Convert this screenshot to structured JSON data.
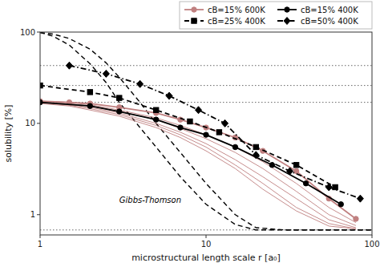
{
  "chart_data": {
    "type": "line",
    "title": "",
    "xlabel": "microstructural length scale  r  [a₀]",
    "ylabel": "solubility [%]",
    "log": true,
    "grid": false,
    "legend": "upper right",
    "xlim": [
      1,
      100
    ],
    "ylim": [
      0.6,
      100
    ],
    "xticks": [
      1,
      10,
      100
    ],
    "yticks": [
      1,
      10,
      100
    ],
    "hlines": [
      17.0,
      26.0,
      43.0,
      0.68
    ],
    "annotations": [
      {
        "text": "Gibbs-Thomson",
        "x": 3.0,
        "y": 1.35
      }
    ],
    "series": [
      {
        "color": "#000000",
        "line_style": "dashed",
        "x": [
          1.0,
          1.2,
          1.5,
          2.0,
          2.5,
          3.0,
          4.0,
          5.0,
          7.0,
          10.0,
          15.0,
          20.0,
          30.0,
          50.0,
          80.0,
          100.0
        ],
        "values": [
          99.0,
          90.0,
          72.0,
          45.0,
          28.0,
          17.0,
          9.0,
          5.5,
          2.6,
          1.3,
          0.78,
          0.68,
          0.68,
          0.68,
          0.68,
          0.68
        ]
      },
      {
        "color": "#000000",
        "line_style": "dashed",
        "x": [
          1.0,
          1.2,
          1.5,
          2.0,
          2.5,
          3.0,
          4.0,
          5.0,
          7.0,
          10.0,
          15.0,
          20.0,
          30.0,
          50.0,
          80.0,
          100.0
        ],
        "values": [
          99.0,
          95.0,
          85.0,
          65.0,
          46.0,
          32.0,
          17.0,
          10.0,
          4.8,
          2.2,
          1.0,
          0.72,
          0.68,
          0.68,
          0.68,
          0.68
        ]
      },
      {
        "color": "#c08080",
        "line_style": "solid",
        "x": [
          1.0,
          1.5,
          2.0,
          3.0,
          5.0,
          7.0,
          10.0,
          15.0,
          22.0,
          35.0,
          55.0,
          80.0
        ],
        "values": [
          17.5,
          17.0,
          16.0,
          14.0,
          11.5,
          9.5,
          7.5,
          5.5,
          3.8,
          2.2,
          1.2,
          0.82
        ]
      },
      {
        "color": "#c08080",
        "line_style": "solid",
        "x": [
          1.0,
          1.5,
          2.0,
          3.0,
          5.0,
          7.0,
          10.0,
          15.0,
          22.0,
          35.0,
          55.0,
          80.0
        ],
        "values": [
          17.2,
          16.5,
          15.5,
          13.5,
          11.0,
          8.8,
          6.8,
          4.8,
          3.2,
          1.8,
          1.0,
          0.76
        ]
      },
      {
        "color": "#c08080",
        "line_style": "solid",
        "x": [
          1.0,
          1.5,
          2.0,
          3.0,
          5.0,
          7.0,
          10.0,
          15.0,
          22.0,
          35.0,
          55.0,
          80.0
        ],
        "values": [
          17.0,
          16.0,
          15.0,
          13.0,
          10.0,
          8.0,
          6.0,
          4.0,
          2.6,
          1.5,
          0.88,
          0.72
        ]
      },
      {
        "color": "#c08080",
        "line_style": "solid",
        "x": [
          1.0,
          1.5,
          2.0,
          3.0,
          5.0,
          7.0,
          10.0,
          15.0,
          22.0,
          35.0,
          55.0,
          80.0
        ],
        "values": [
          16.8,
          15.8,
          14.5,
          12.5,
          9.5,
          7.5,
          5.5,
          3.5,
          2.2,
          1.2,
          0.8,
          0.7
        ]
      },
      {
        "color": "#c08080",
        "line_style": "solid",
        "x": [
          1.0,
          1.5,
          2.0,
          3.0,
          5.0,
          7.0,
          10.0,
          15.0,
          22.0,
          35.0,
          55.0,
          80.0
        ],
        "values": [
          16.5,
          15.5,
          14.0,
          12.0,
          9.0,
          7.0,
          5.0,
          3.2,
          1.9,
          1.1,
          0.75,
          0.7
        ]
      },
      {
        "name": "cB=15% 600K",
        "color": "#c08080",
        "line_style": "solid",
        "marker": "circle",
        "x": [
          1.0,
          1.5,
          2.0,
          3.0,
          5.0,
          7.0,
          10.0,
          15.0,
          22.0,
          35.0,
          55.0,
          80.0
        ],
        "values": [
          17.5,
          17.0,
          16.5,
          15.0,
          13.0,
          11.0,
          9.0,
          7.0,
          5.0,
          3.0,
          1.5,
          0.9
        ]
      },
      {
        "name": "cB=15% 400K",
        "color": "#000000",
        "line_style": "solid",
        "marker": "circle",
        "x": [
          1.0,
          2.0,
          3.0,
          5.0,
          7.0,
          10.0,
          15.0,
          25.0,
          40.0,
          65.0
        ],
        "values": [
          17.0,
          15.5,
          13.5,
          11.0,
          9.0,
          7.5,
          5.5,
          3.5,
          2.2,
          1.3
        ]
      },
      {
        "name": "cB=25% 400K",
        "color": "#000000",
        "line_style": "dashed",
        "marker": "square",
        "x": [
          1.0,
          2.0,
          3.0,
          5.0,
          8.0,
          12.0,
          20.0,
          35.0,
          60.0
        ],
        "values": [
          26.0,
          22.0,
          19.0,
          14.0,
          10.5,
          8.0,
          5.5,
          3.5,
          2.0
        ]
      },
      {
        "name": "cB=50% 400K",
        "color": "#000000",
        "line_style": "dashdot",
        "marker": "diamond",
        "x": [
          1.5,
          2.5,
          4.0,
          6.0,
          9.0,
          13.0,
          20.0,
          32.0,
          55.0,
          85.0
        ],
        "values": [
          43.0,
          35.0,
          27.0,
          20.0,
          14.0,
          10.0,
          4.5,
          3.0,
          2.0,
          1.5
        ]
      }
    ]
  }
}
